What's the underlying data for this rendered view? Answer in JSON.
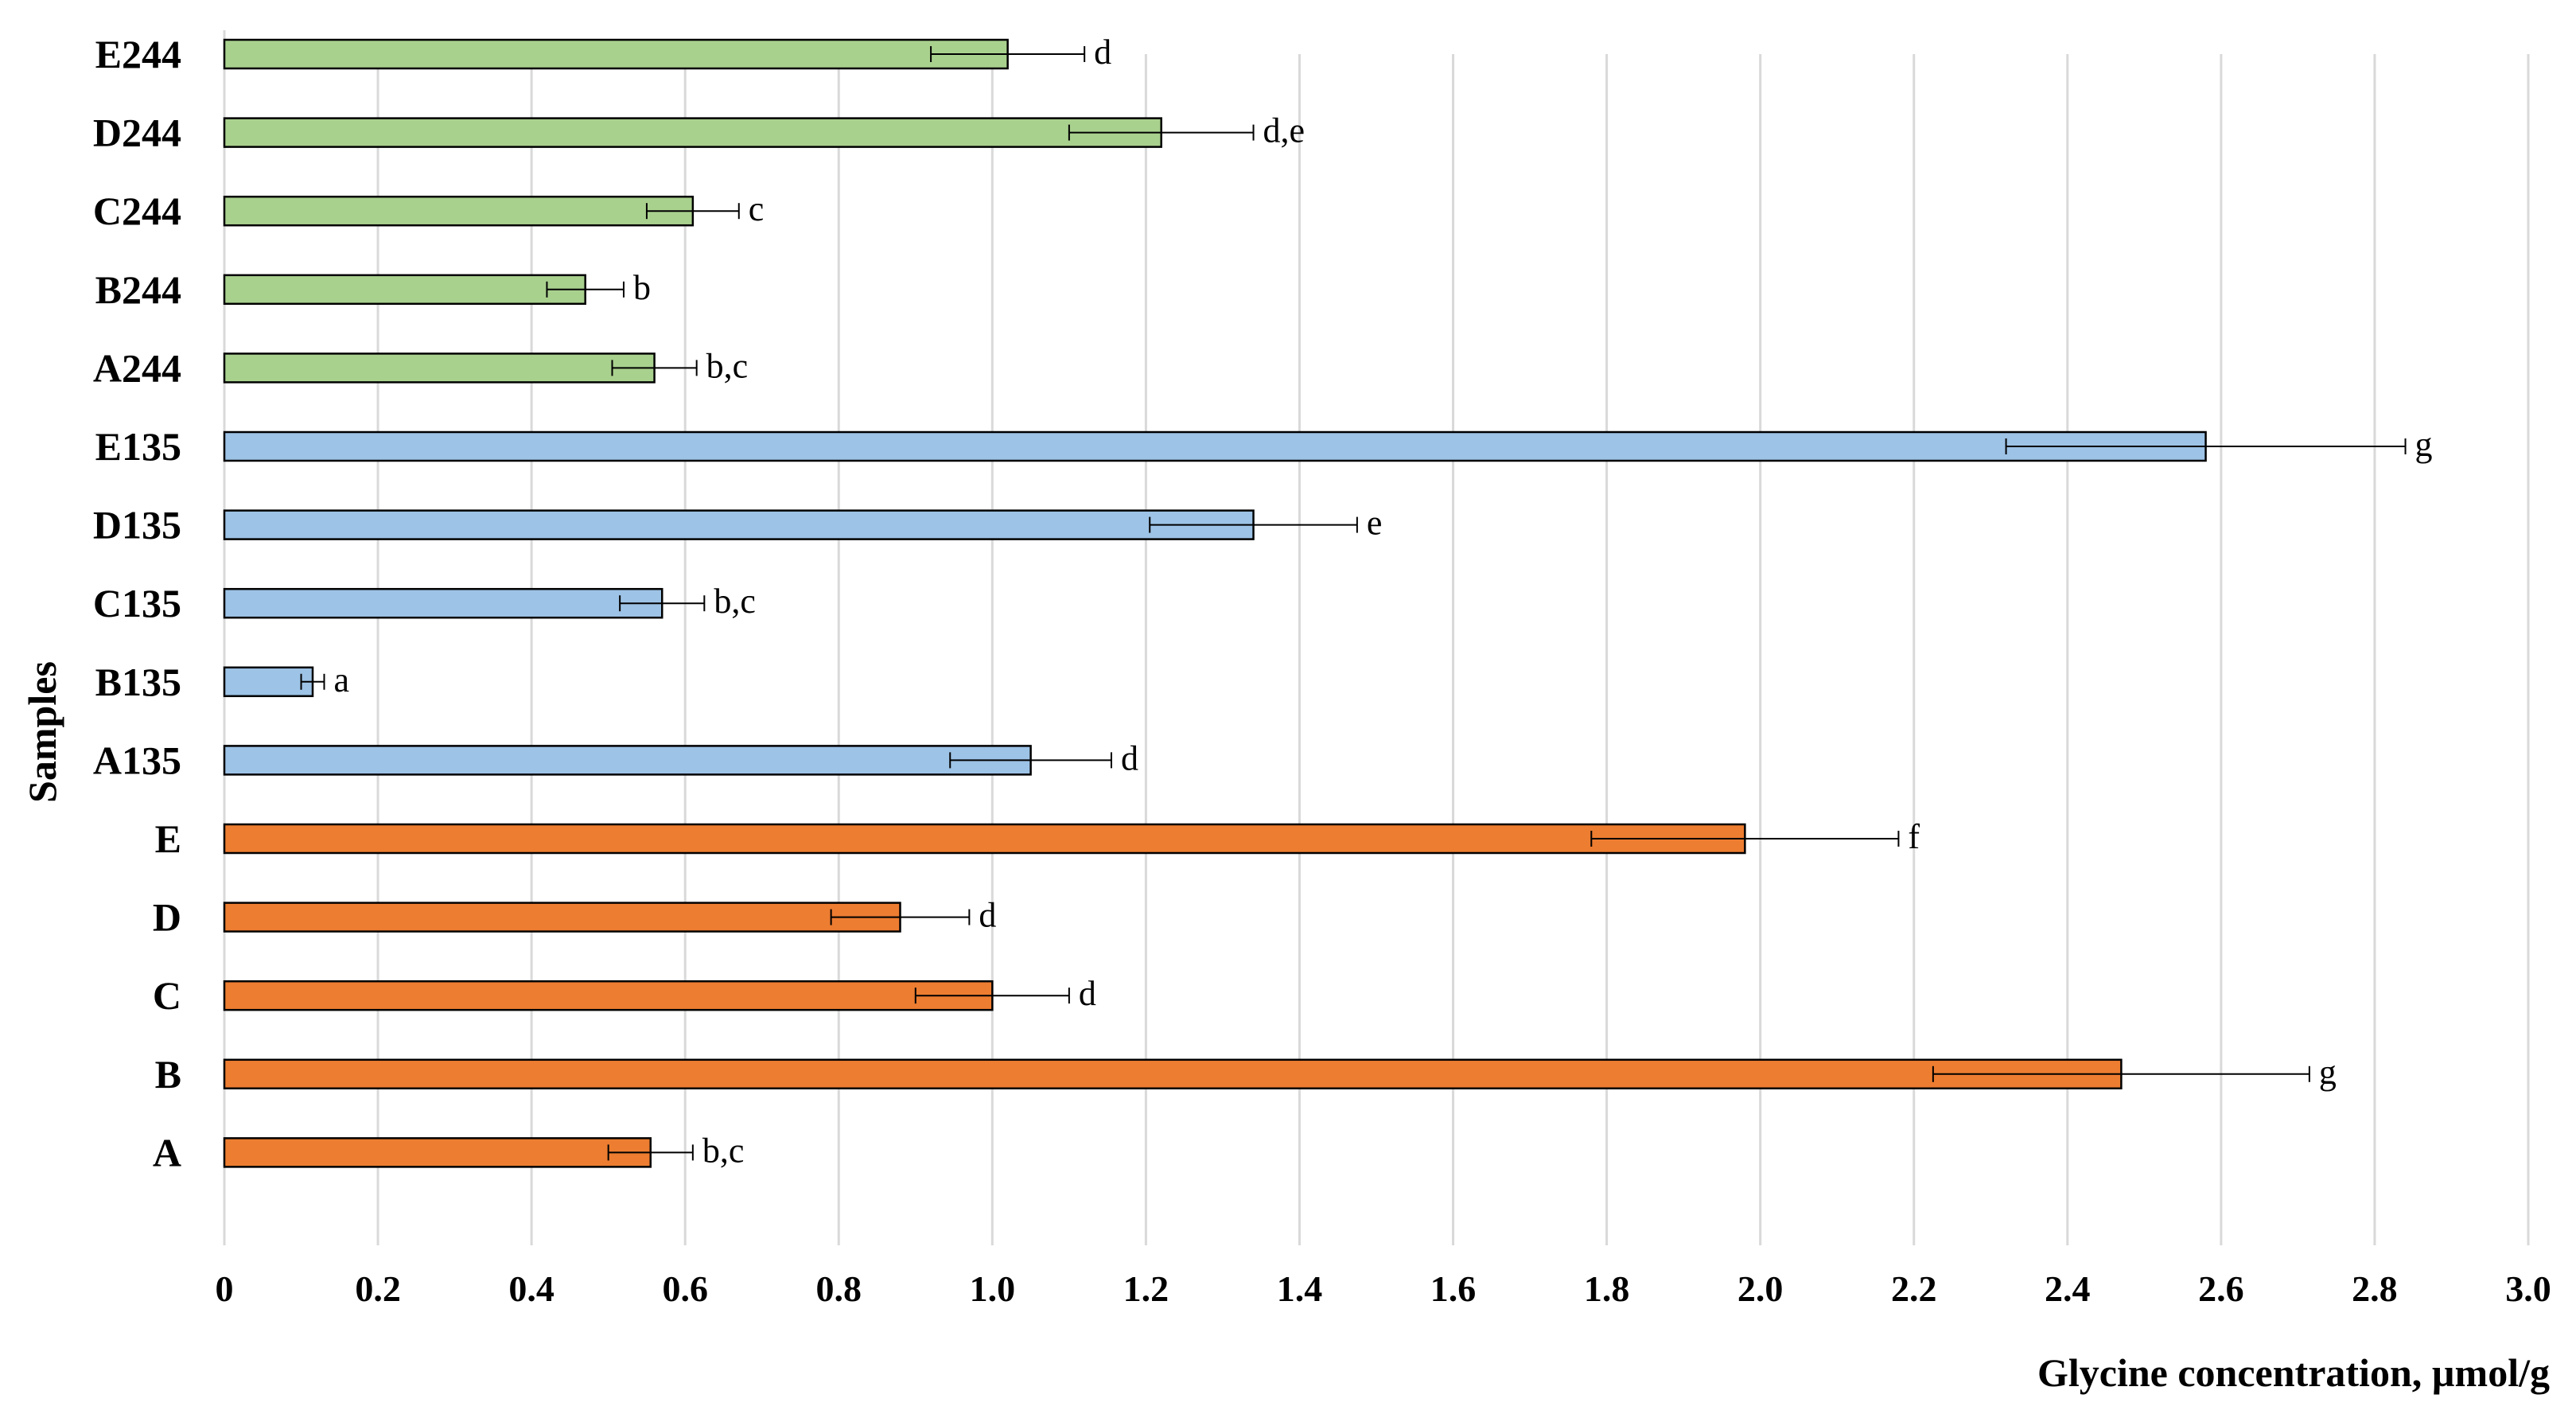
{
  "chart_data": {
    "type": "bar",
    "orientation": "horizontal",
    "title": "",
    "xlabel": "Glycine concentration, µmol/g",
    "ylabel": "Samples",
    "xlim": [
      0,
      3.0
    ],
    "xticks": [
      "0",
      "0.2",
      "0.4",
      "0.6",
      "0.8",
      "1.0",
      "1.2",
      "1.4",
      "1.6",
      "1.8",
      "2.0",
      "2.2",
      "2.4",
      "2.6",
      "2.8",
      "3.0"
    ],
    "grid": true,
    "groups": {
      "244": {
        "color": "#a9d18e"
      },
      "135": {
        "color": "#9dc3e6"
      },
      "base": {
        "color": "#ed7d31"
      }
    },
    "bars": [
      {
        "category": "E244",
        "value": 1.02,
        "error": 0.1,
        "letter": "d",
        "group": "244"
      },
      {
        "category": "D244",
        "value": 1.22,
        "error": 0.12,
        "letter": "d,e",
        "group": "244"
      },
      {
        "category": "C244",
        "value": 0.61,
        "error": 0.06,
        "letter": "c",
        "group": "244"
      },
      {
        "category": "B244",
        "value": 0.47,
        "error": 0.05,
        "letter": "b",
        "group": "244"
      },
      {
        "category": "A244",
        "value": 0.56,
        "error": 0.055,
        "letter": "b,c",
        "group": "244"
      },
      {
        "category": "E135",
        "value": 2.58,
        "error": 0.26,
        "letter": "g",
        "group": "135"
      },
      {
        "category": "D135",
        "value": 1.34,
        "error": 0.135,
        "letter": "e",
        "group": "135"
      },
      {
        "category": "C135",
        "value": 0.57,
        "error": 0.055,
        "letter": "b,c",
        "group": "135"
      },
      {
        "category": "B135",
        "value": 0.115,
        "error": 0.015,
        "letter": "a",
        "group": "135"
      },
      {
        "category": "A135",
        "value": 1.05,
        "error": 0.105,
        "letter": "d",
        "group": "135"
      },
      {
        "category": "E",
        "value": 1.98,
        "error": 0.2,
        "letter": "f",
        "group": "base"
      },
      {
        "category": "D",
        "value": 0.88,
        "error": 0.09,
        "letter": "d",
        "group": "base"
      },
      {
        "category": "C",
        "value": 1.0,
        "error": 0.1,
        "letter": "d",
        "group": "base"
      },
      {
        "category": "B",
        "value": 2.47,
        "error": 0.245,
        "letter": "g",
        "group": "base"
      },
      {
        "category": "A",
        "value": 0.555,
        "error": 0.055,
        "letter": "b,c",
        "group": "base"
      }
    ]
  }
}
